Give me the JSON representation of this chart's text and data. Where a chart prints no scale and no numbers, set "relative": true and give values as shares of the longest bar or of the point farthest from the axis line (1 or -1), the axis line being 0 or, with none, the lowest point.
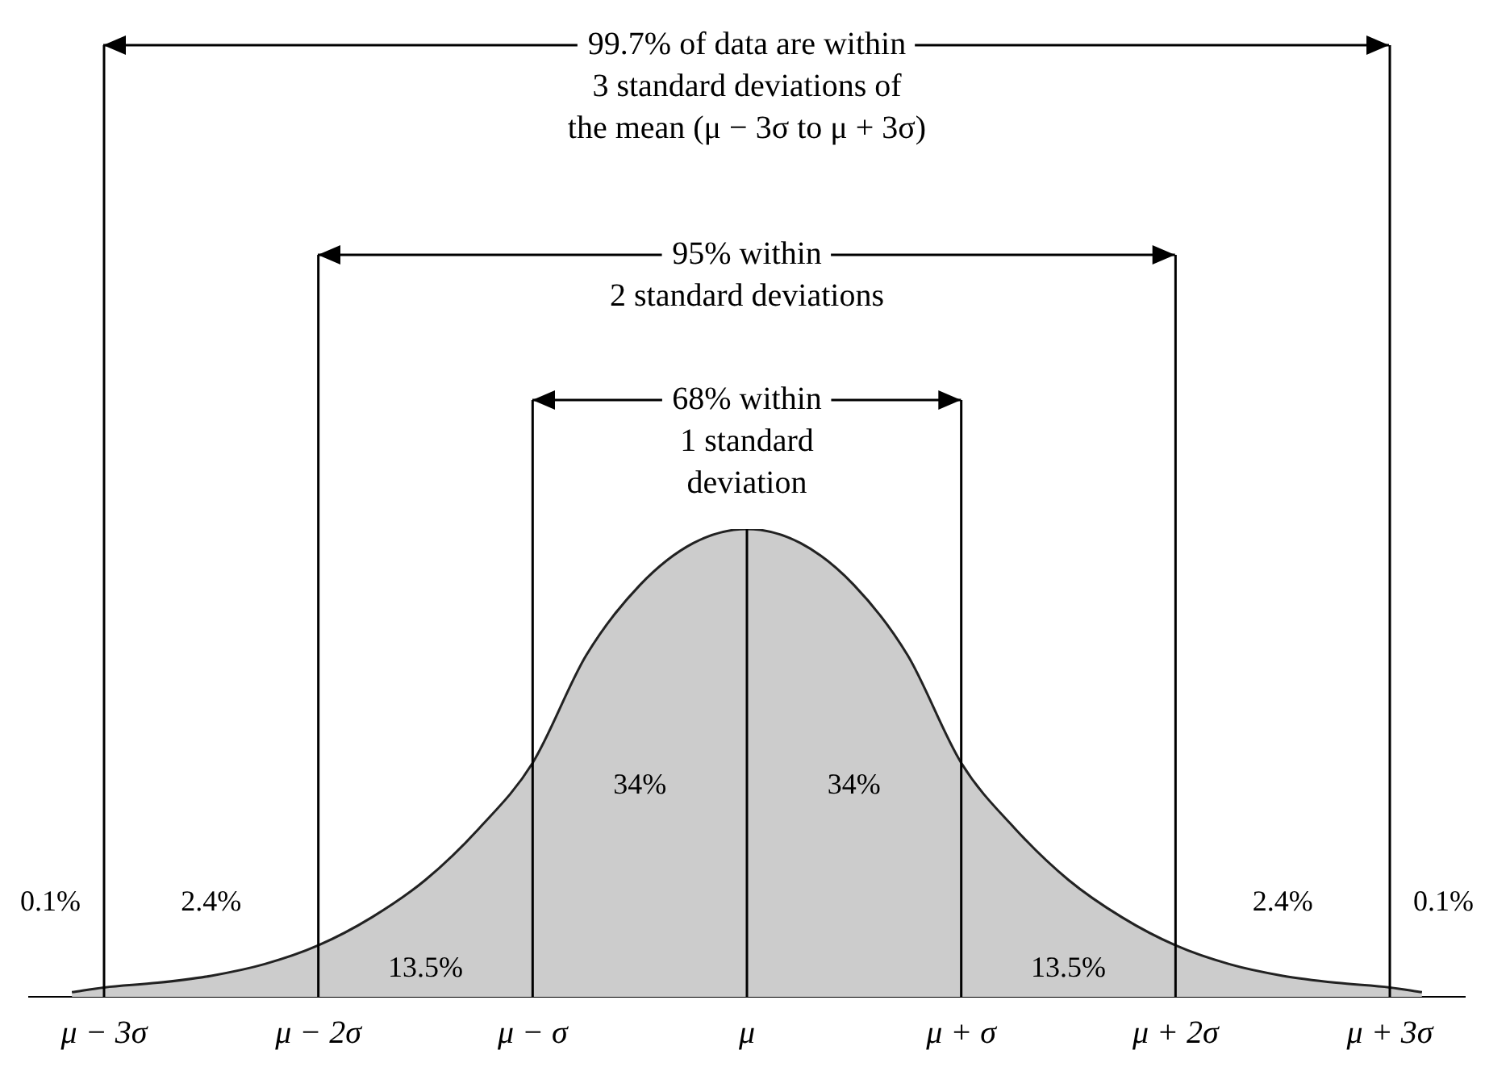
{
  "chart_data": {
    "type": "area",
    "relative": true,
    "x": [
      -3.15,
      -3,
      -2.75,
      -2.5,
      -2.25,
      -2,
      -1.75,
      -1.5,
      -1.25,
      -1,
      -0.75,
      -0.5,
      -0.25,
      0,
      0.25,
      0.5,
      0.75,
      1,
      1.25,
      1.5,
      1.75,
      2,
      2.25,
      2.5,
      2.75,
      3,
      3.15
    ],
    "series": [
      {
        "color": "#cccccc",
        "values": [
          0.01,
          0.02,
          0.03,
          0.045,
          0.07,
          0.11,
          0.17,
          0.25,
          0.36,
          0.5,
          0.73,
          0.88,
          0.97,
          1,
          0.97,
          0.88,
          0.73,
          0.5,
          0.36,
          0.25,
          0.17,
          0.11,
          0.07,
          0.045,
          0.03,
          0.02,
          0.01
        ]
      }
    ],
    "xlim": [
      -3.35,
      3.35
    ],
    "xticks": [
      {
        "value": -3,
        "label": "μ − 3σ"
      },
      {
        "value": -2,
        "label": "μ − 2σ"
      },
      {
        "value": -1,
        "label": "μ − σ"
      },
      {
        "value": 0,
        "label": "μ"
      },
      {
        "value": 1,
        "label": "μ + σ"
      },
      {
        "value": 2,
        "label": "μ + 2σ"
      },
      {
        "value": 3,
        "label": "μ + 3σ"
      }
    ],
    "grid": false,
    "legend": false,
    "ref_lines": [
      {
        "axis": "x",
        "value": -3
      },
      {
        "axis": "x",
        "value": -2
      },
      {
        "axis": "x",
        "value": -1
      },
      {
        "axis": "x",
        "value": 0
      },
      {
        "axis": "x",
        "value": 1
      },
      {
        "axis": "x",
        "value": 2
      },
      {
        "axis": "x",
        "value": 3
      }
    ],
    "annotations": [
      "99.7% of data are within\n3 standard deviations of\nthe mean (μ − 3σ to μ + 3σ)",
      "95% within\n2 standard deviations",
      "68% within\n1 standard\ndeviation",
      "34%",
      "34%",
      "13.5%",
      "13.5%",
      "2.4%",
      "2.4%",
      "0.1%",
      "0.1%"
    ]
  }
}
